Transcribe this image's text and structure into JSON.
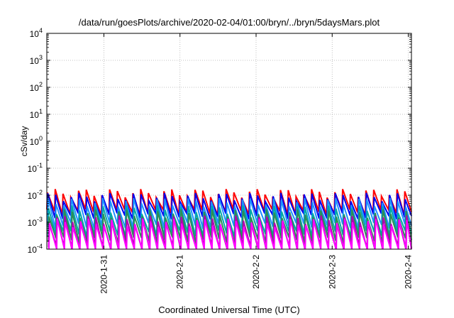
{
  "chart_data": {
    "type": "line",
    "title": "/data/run/goesPlots/archive/2020-02-04/01:00/bryn/../bryn/5daysMars.plot",
    "xlabel": "Coordinated Universal Time (UTC)",
    "ylabel": "cSv/day",
    "yscale": "log",
    "ylim": [
      0.0001,
      10000
    ],
    "y_ticks": [
      {
        "base": "10",
        "exp": "-4"
      },
      {
        "base": "10",
        "exp": "-3"
      },
      {
        "base": "10",
        "exp": "-2"
      },
      {
        "base": "10",
        "exp": "-1"
      },
      {
        "base": "10",
        "exp": "0"
      },
      {
        "base": "10",
        "exp": "1"
      },
      {
        "base": "10",
        "exp": "2"
      },
      {
        "base": "10",
        "exp": "3"
      },
      {
        "base": "10",
        "exp": "4"
      }
    ],
    "xlim": [
      "2020-01-30T06:00",
      "2020-02-04T01:00"
    ],
    "x_ticks": [
      "2020-1-31",
      "2020-2-1",
      "2020-2-2",
      "2020-2-3",
      "2020-2-4"
    ],
    "grid": true,
    "legend": "none",
    "pattern": {
      "description": "sawtooth: sharp rise then decay, repeating",
      "period_hours": 2.45,
      "start": "2020-01-30T06:00",
      "gap_after_peak": "2020-02-02T23:00"
    },
    "series": [
      {
        "color": "#ff0000",
        "peak": 0.0125,
        "trough": 0.0024,
        "phase_hours": 0.0
      },
      {
        "color": "#0000ee",
        "peak": 0.009,
        "trough": 0.0017,
        "phase_hours": 0.12
      },
      {
        "color": "#1e90ff",
        "peak": 0.0058,
        "trough": 0.00075,
        "phase_hours": 0.25
      },
      {
        "color": "#00a8a8",
        "peak": 0.0031,
        "trough": 0.00038,
        "phase_hours": 0.35
      },
      {
        "color": "#2e8b57",
        "peak": 0.0022,
        "trough": 0.00022,
        "phase_hours": 0.45
      },
      {
        "color": "#b000b0",
        "peak": 0.0013,
        "trough": 0.00011,
        "phase_hours": 0.55
      },
      {
        "color": "#ff00ff",
        "peak": 0.001,
        "trough": 8e-05,
        "phase_hours": 0.65
      }
    ]
  }
}
